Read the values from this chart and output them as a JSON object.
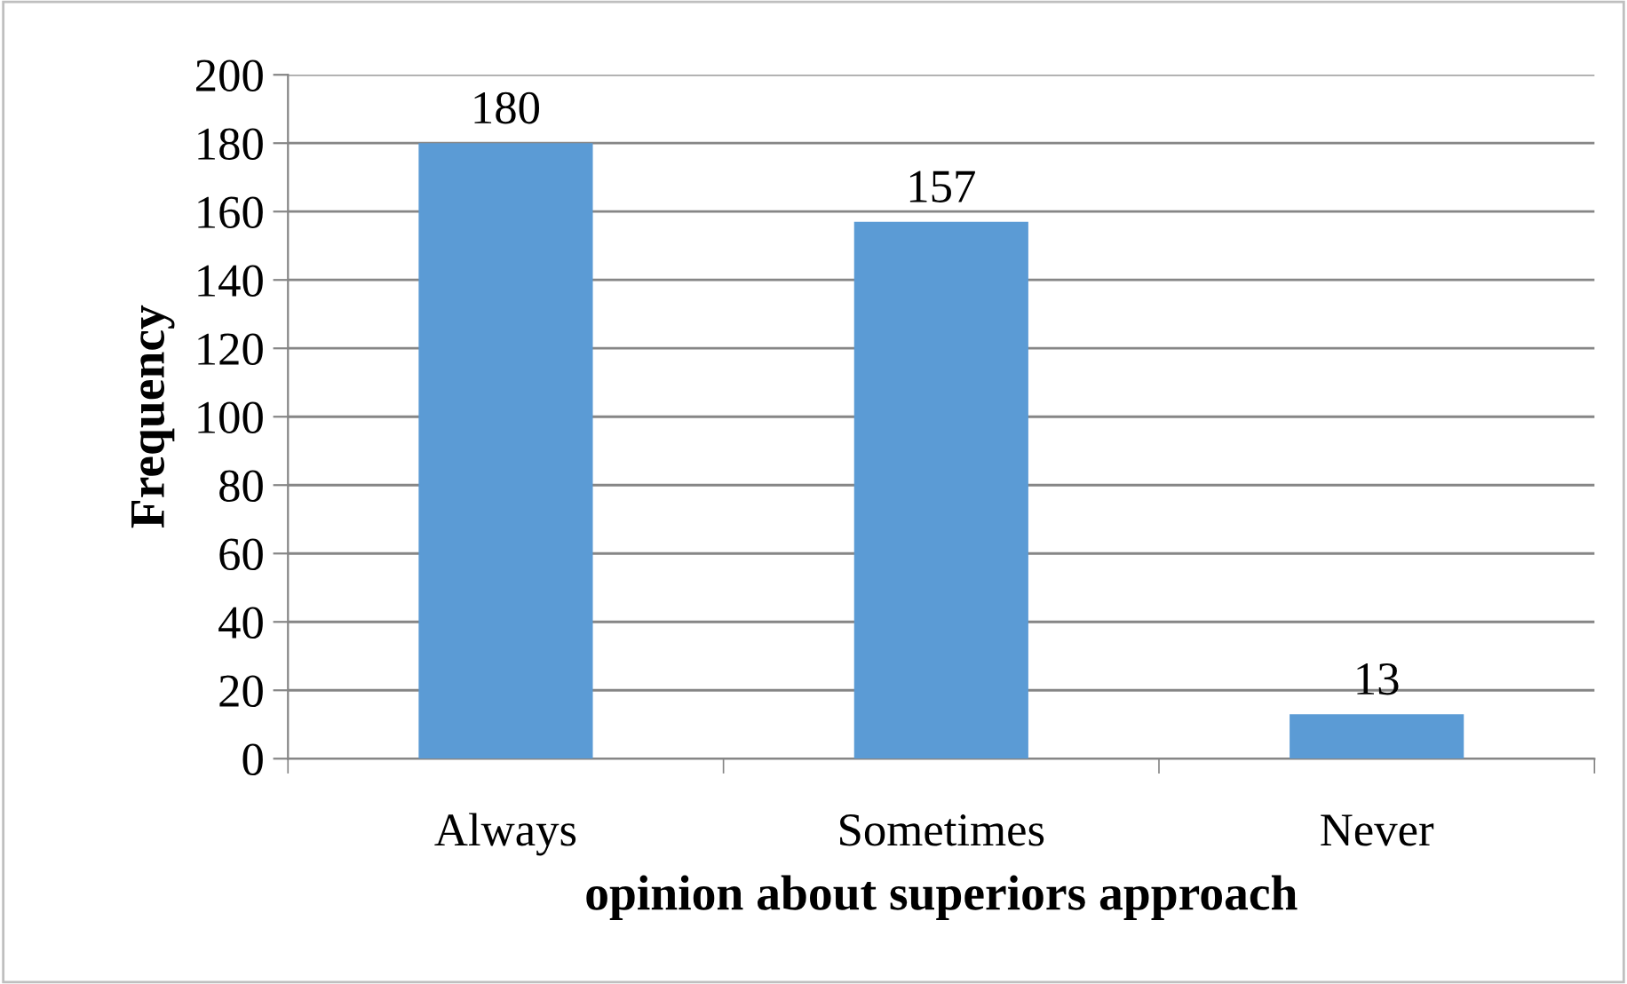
{
  "chart_data": {
    "type": "bar",
    "xlabel": "opinion about superiors approach",
    "ylabel": "Frequency",
    "categories": [
      "Always",
      "Sometimes",
      "Never"
    ],
    "values": [
      180,
      157,
      13
    ],
    "color": "#5b9bd5",
    "ylim": [
      0,
      200
    ],
    "yticks": [
      0,
      20,
      40,
      60,
      80,
      100,
      120,
      140,
      160,
      180,
      200
    ],
    "grid": "y",
    "data_labels": true
  }
}
